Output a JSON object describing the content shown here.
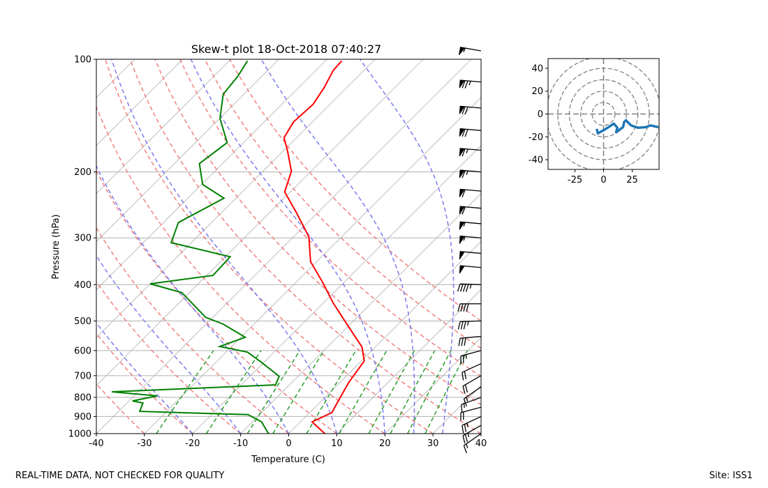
{
  "chart_data": [
    {
      "type": "skewt",
      "title": "Skew-t plot 18-Oct-2018 07:40:27",
      "xlabel": "Temperature (C)",
      "ylabel": "Pressure (hPa)",
      "xlim": [
        -40,
        40
      ],
      "xticks": [
        -40,
        -30,
        -20,
        -10,
        0,
        10,
        20,
        30,
        40
      ],
      "ylim": [
        1000,
        100
      ],
      "yticks": [
        1000,
        900,
        800,
        700,
        600,
        500,
        400,
        300,
        200,
        100
      ],
      "yscale": "log",
      "grid": true,
      "series": [
        {
          "color": "#ff0000",
          "pressure": [
            1000,
            930,
            879,
            818,
            728,
            640,
            587,
            521,
            449,
            394,
            347,
            298,
            257,
            226,
            199,
            175,
            162,
            147,
            132,
            119,
            107,
            101
          ],
          "temperature": [
            7.5,
            2.4,
            4.6,
            3.5,
            1.8,
            0.6,
            -2.8,
            -9.5,
            -17.8,
            -24.5,
            -31.3,
            -36.8,
            -44.4,
            -51.2,
            -54.1,
            -59.3,
            -62.6,
            -63.9,
            -63.5,
            -64.7,
            -66.4,
            -66.6
          ]
        },
        {
          "color": "#008000",
          "pressure": [
            1000,
            930,
            890,
            872,
            828,
            818,
            793,
            773,
            741,
            703,
            646,
            606,
            585,
            553,
            510,
            489,
            420,
            398,
            378,
            337,
            309,
            273,
            235,
            216,
            190,
            167,
            144,
            124,
            111,
            101
          ],
          "temperature": [
            -4.2,
            -8.1,
            -12.4,
            -35.6,
            -36.7,
            -39.3,
            -35.2,
            -45.5,
            -12.9,
            -13.9,
            -20.4,
            -25.5,
            -32.5,
            -29.1,
            -36.4,
            -41.5,
            -51.6,
            -60,
            -48.7,
            -49,
            -64.2,
            -66.9,
            -62.5,
            -69.8,
            -74.8,
            -73.4,
            -79.9,
            -84.3,
            -85,
            -86.2
          ]
        }
      ],
      "isotherms": [
        -110,
        -100,
        -90,
        -80,
        -70,
        -60,
        -50,
        -40,
        -30,
        -20,
        -10,
        0,
        10,
        20,
        30,
        40
      ],
      "dry_adiabats": [
        -30,
        -20,
        -10,
        0,
        10,
        20,
        30,
        40,
        50,
        60,
        70,
        80
      ],
      "moist_adiabats": [
        -20,
        -10,
        0,
        10,
        20,
        26,
        32
      ],
      "mixing_ratio_lines": [
        0.4,
        1,
        2,
        3,
        5,
        8,
        12,
        16,
        20,
        25
      ],
      "wind_barbs": {
        "pressure": [
          95,
          115,
          135,
          155,
          175,
          200,
          225,
          250,
          275,
          300,
          330,
          360,
          400,
          450,
          500,
          550,
          600,
          650,
          700,
          750,
          800,
          850,
          900,
          950,
          1000
        ],
        "direction": [
          280,
          275,
          275,
          275,
          275,
          275,
          275,
          275,
          275,
          275,
          275,
          275,
          272,
          270,
          268,
          265,
          255,
          245,
          240,
          235,
          250,
          255,
          245,
          240,
          235
        ],
        "speed": [
          55,
          75,
          70,
          70,
          65,
          65,
          60,
          60,
          55,
          55,
          50,
          50,
          45,
          40,
          35,
          30,
          25,
          20,
          20,
          15,
          15,
          20,
          25,
          25,
          15
        ]
      }
    },
    {
      "type": "hodograph",
      "xlim": [
        -48.5,
        48.5
      ],
      "ylim": [
        -48.5,
        48.5
      ],
      "xticks": [
        -25,
        0,
        25
      ],
      "yticks": [
        -40,
        -20,
        0,
        20,
        40
      ],
      "rings": [
        10,
        20,
        30,
        40,
        50
      ],
      "series": [
        {
          "color": "#1f77b4",
          "x": [
            -6,
            -5,
            2,
            9,
            12,
            11,
            17,
            18,
            19.5,
            24,
            30,
            37,
            41,
            48
          ],
          "values": [
            -13,
            -17,
            -13,
            -8.5,
            -12,
            -16,
            -11.5,
            -7,
            -5.5,
            -10,
            -12,
            -11.5,
            -10,
            -11.5
          ]
        }
      ]
    }
  ],
  "footer": {
    "left": "REAL-TIME DATA, NOT CHECKED FOR QUALITY",
    "right": "Site: ISS1"
  }
}
